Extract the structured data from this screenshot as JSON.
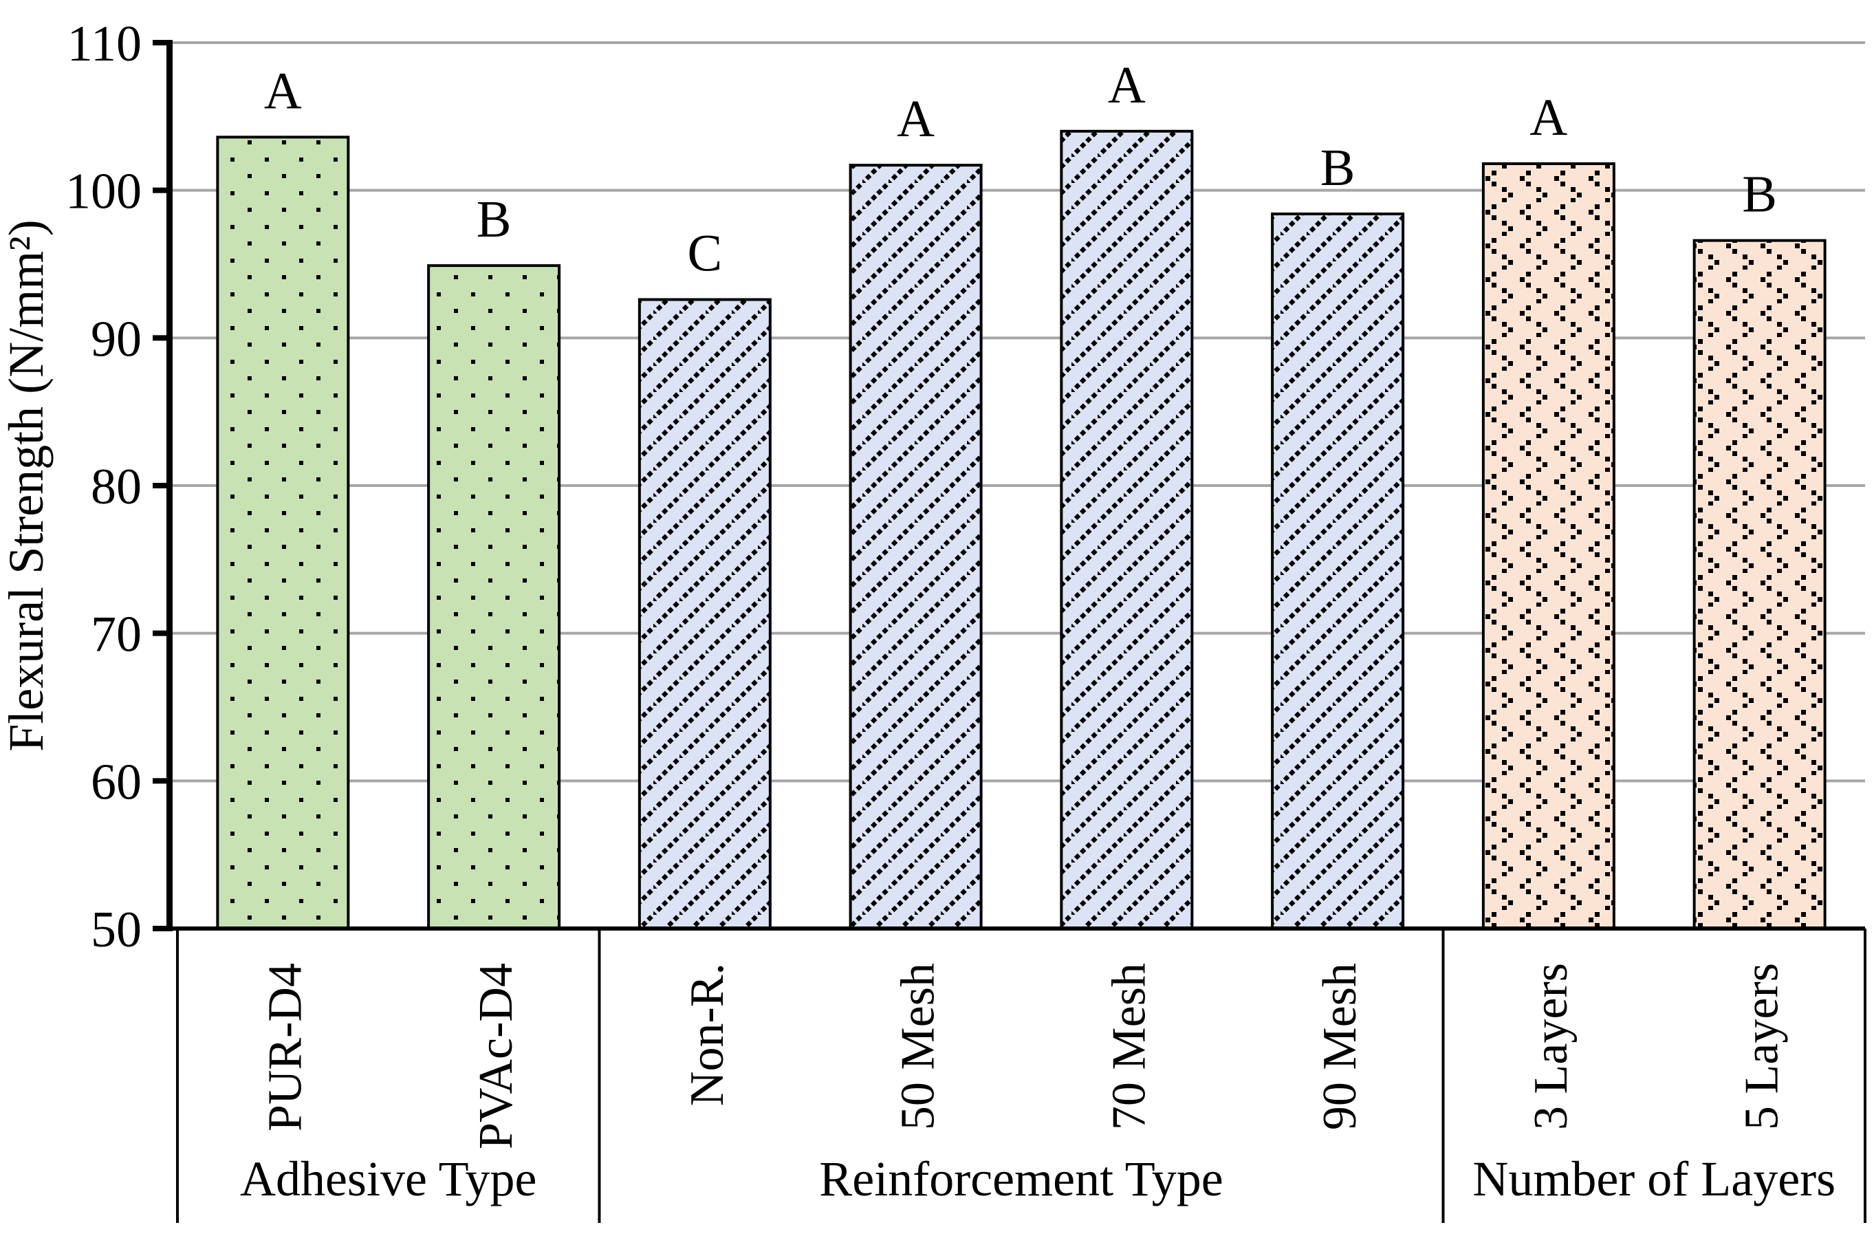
{
  "figure": {
    "background": "#FFFFFF",
    "colors": {
      "grid": "#A6A6A6",
      "axis": "#000000",
      "bar_border": "#000000",
      "pattern_marks": "#000000"
    }
  },
  "chart_data": {
    "type": "bar",
    "title": "",
    "xlabel": "",
    "ylabel": "Flexural Strength (N/mm²)",
    "ylim": [
      50,
      110
    ],
    "ytick_step": 10,
    "yticks": [
      50,
      60,
      70,
      80,
      90,
      100,
      110
    ],
    "grid": true,
    "legend": "none",
    "categories": [
      "PUR-D4",
      "PVAc-D4",
      "Non-R.",
      "50 Mesh",
      "70 Mesh",
      "90 Mesh",
      "3 Layers",
      "5 Layers"
    ],
    "values": [
      103.6,
      94.9,
      92.6,
      101.7,
      104.0,
      98.4,
      101.8,
      96.6
    ],
    "bar_letters": [
      "A",
      "B",
      "C",
      "A",
      "A",
      "B",
      "A",
      "B"
    ],
    "groups": [
      {
        "label": "Adhesive Type",
        "start": 0,
        "count": 2,
        "fill": "#C8E2B4",
        "pattern": "dots"
      },
      {
        "label": "Reinforcement Type",
        "start": 2,
        "count": 4,
        "fill": "#DBE3F4",
        "pattern": "diagonal"
      },
      {
        "label": "Number of Layers",
        "start": 6,
        "count": 2,
        "fill": "#FCE4D4",
        "pattern": "chevron"
      }
    ]
  }
}
